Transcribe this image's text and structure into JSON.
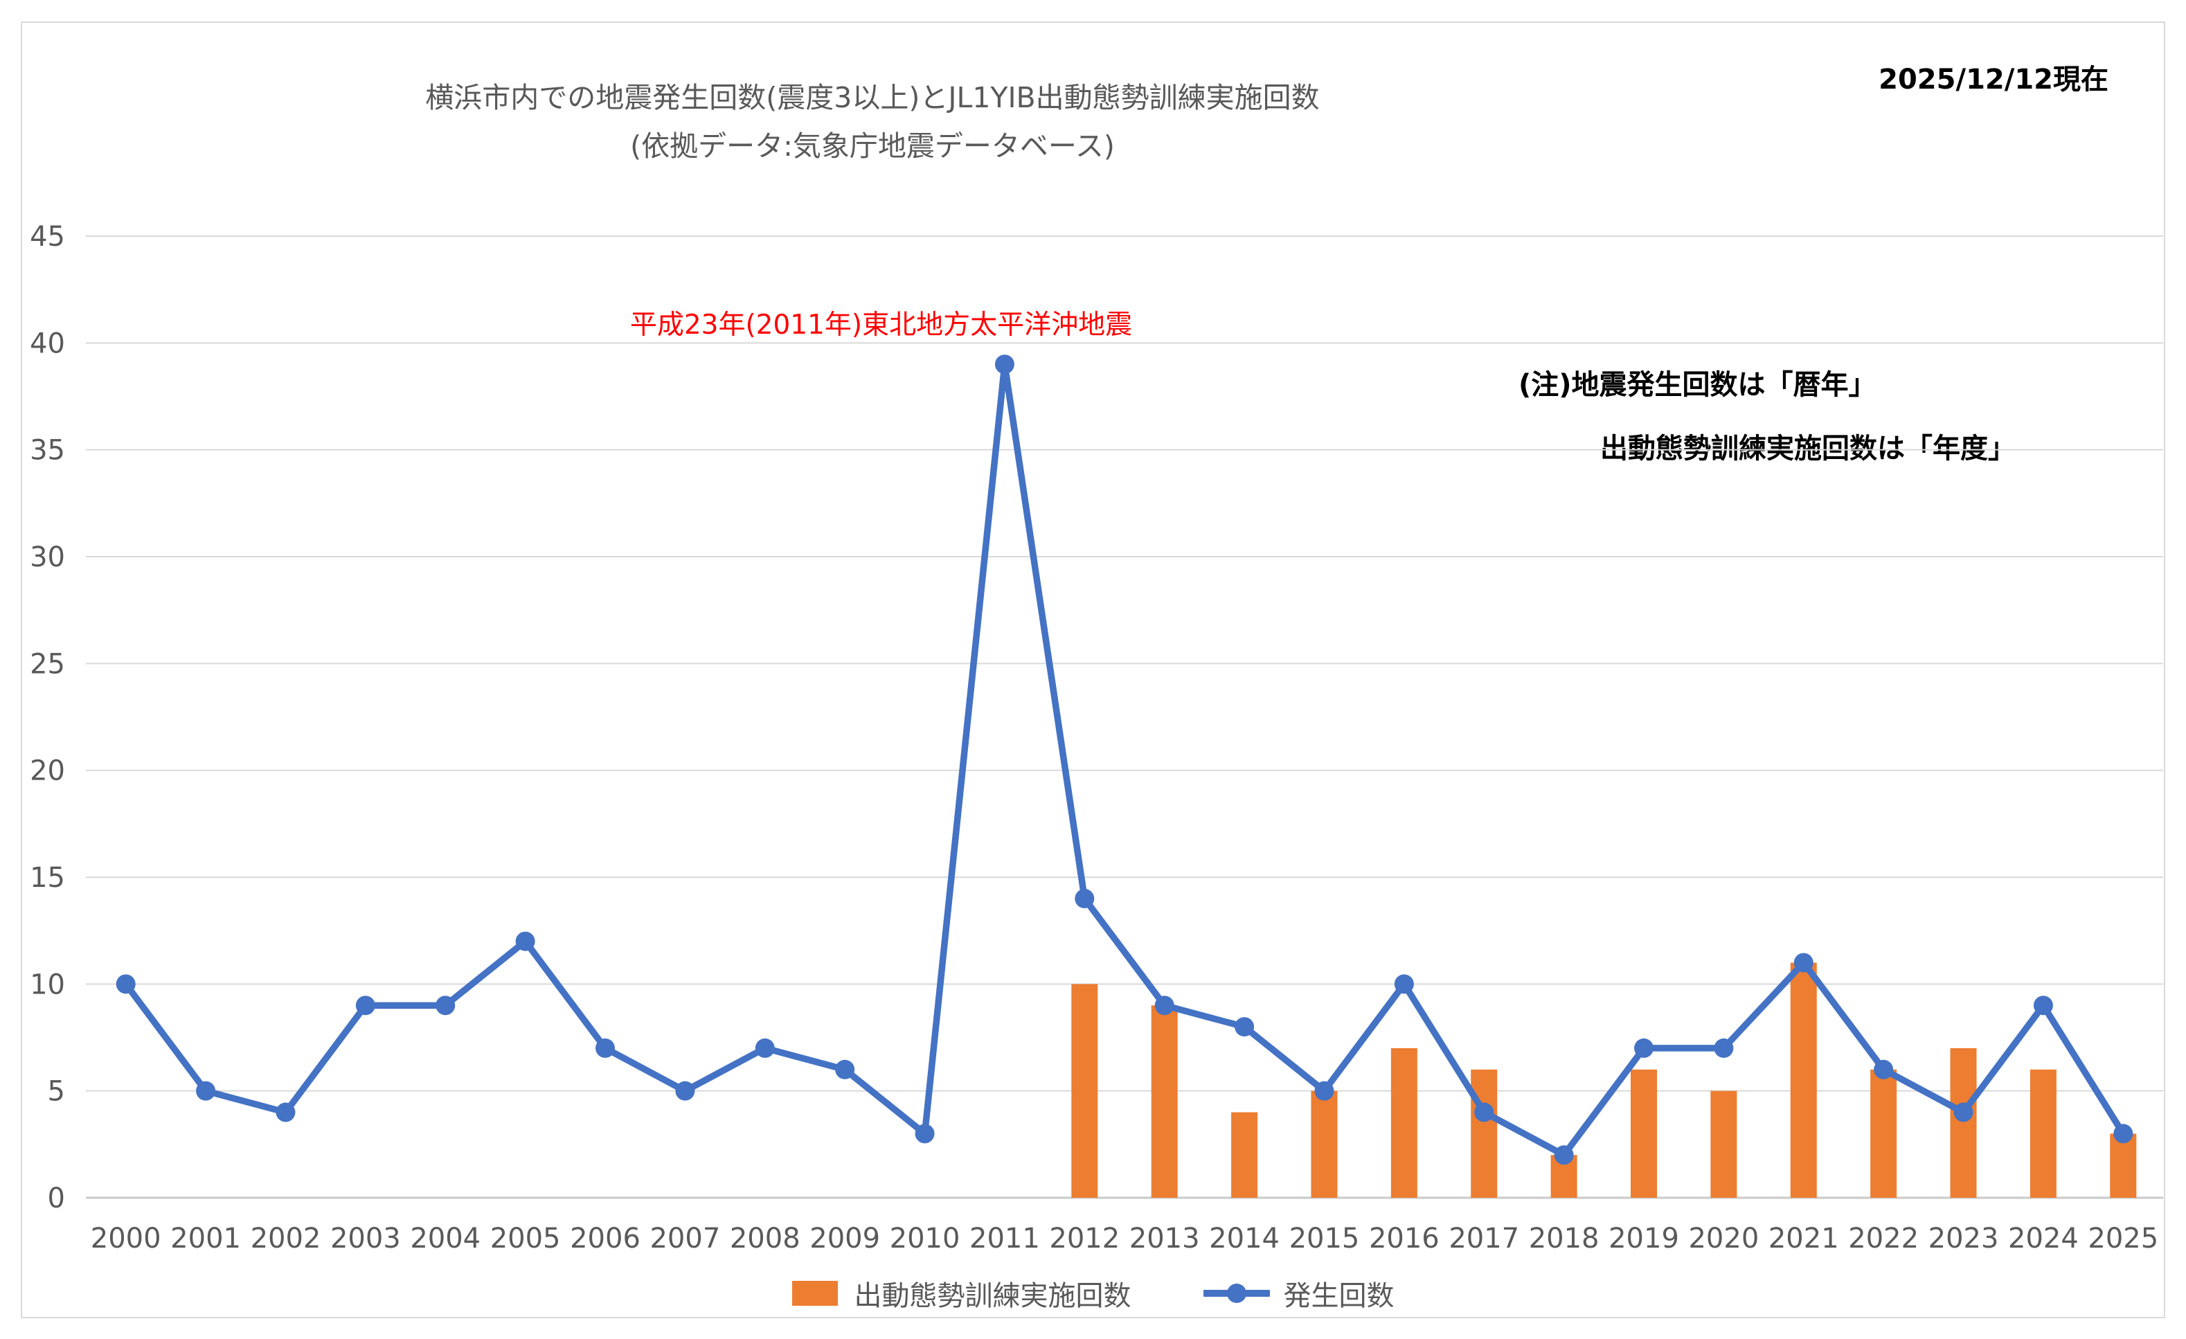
{
  "header": {
    "title_line1": "横浜市内での地震発生回数(震度3以上)とJL1YIB出動態勢訓練実施回数",
    "title_line2": "(依拠データ:気象庁地震データベース)",
    "as_of_date": "2025/12/12現在"
  },
  "annotations": {
    "earthquake_2011": "平成23年(2011年)東北地方太平洋沖地震",
    "note_line1": "(注)地震発生回数は「暦年」",
    "note_line2": "出動態勢訓練実施回数は「年度」"
  },
  "legend": {
    "bars": "出動態勢訓練実施回数",
    "line": "発生回数"
  },
  "colors": {
    "line": "#4472C4",
    "bars": "#ED7D31",
    "grid": "#D9D9D9",
    "axis_line": "#C9C9C9",
    "axis_text": "#595959",
    "title_text": "#595959",
    "legend_text": "#595959",
    "annotation_red": "#FF0000",
    "note_text": "#000000"
  },
  "chart_data": {
    "type": "combo",
    "title": "横浜市内での地震発生回数(震度3以上)とJL1YIB出動態勢訓練実施回数",
    "subtitle": "(依拠データ:気象庁地震データベース)",
    "categories": [
      2000,
      2001,
      2002,
      2003,
      2004,
      2005,
      2006,
      2007,
      2008,
      2009,
      2010,
      2011,
      2012,
      2013,
      2014,
      2015,
      2016,
      2017,
      2018,
      2019,
      2020,
      2021,
      2022,
      2023,
      2024,
      2025
    ],
    "series": [
      {
        "name": "出動態勢訓練実施回数",
        "type": "bar",
        "values": [
          null,
          null,
          null,
          null,
          null,
          null,
          null,
          null,
          null,
          null,
          null,
          null,
          10,
          9,
          4,
          5,
          7,
          6,
          2,
          6,
          5,
          11,
          6,
          7,
          6,
          3
        ]
      },
      {
        "name": "発生回数",
        "type": "line",
        "values": [
          10,
          5,
          4,
          9,
          9,
          12,
          7,
          5,
          7,
          6,
          3,
          39,
          14,
          9,
          8,
          5,
          10,
          4,
          2,
          7,
          7,
          11,
          6,
          4,
          9,
          3
        ]
      }
    ],
    "xlabel": "",
    "ylabel": "",
    "ylim": [
      0,
      45
    ],
    "ytick_step": 5,
    "grid": true,
    "legend_position": "bottom",
    "annotation": {
      "text": "平成23年(2011年)東北地方太平洋沖地震",
      "near_category": 2011,
      "color": "#FF0000"
    }
  }
}
